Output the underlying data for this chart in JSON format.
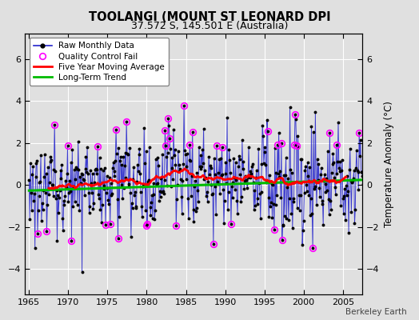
{
  "title": "TOOLANGI (MOUNT ST LEONARD DPI",
  "subtitle": "37.572 S, 145.501 E (Australia)",
  "ylabel": "Temperature Anomaly (°C)",
  "credit": "Berkeley Earth",
  "xlim": [
    1964.5,
    2007.5
  ],
  "ylim": [
    -5.2,
    7.2
  ],
  "yticks": [
    -4,
    -2,
    0,
    2,
    4,
    6
  ],
  "xticks": [
    1965,
    1970,
    1975,
    1980,
    1985,
    1990,
    1995,
    2000,
    2005
  ],
  "bg_color": "#e0e0e0",
  "raw_line_color": "#2222cc",
  "raw_marker_color": "#000000",
  "qc_color": "#ff00ff",
  "mavg_color": "#ff0000",
  "trend_color": "#00bb00",
  "trend_lw": 2.2,
  "mavg_lw": 2.0,
  "raw_lw": 0.7,
  "title_fontsize": 10.5,
  "subtitle_fontsize": 9,
  "tick_labelsize": 8,
  "ylabel_fontsize": 8.5,
  "legend_fontsize": 7.5,
  "credit_fontsize": 7.5
}
